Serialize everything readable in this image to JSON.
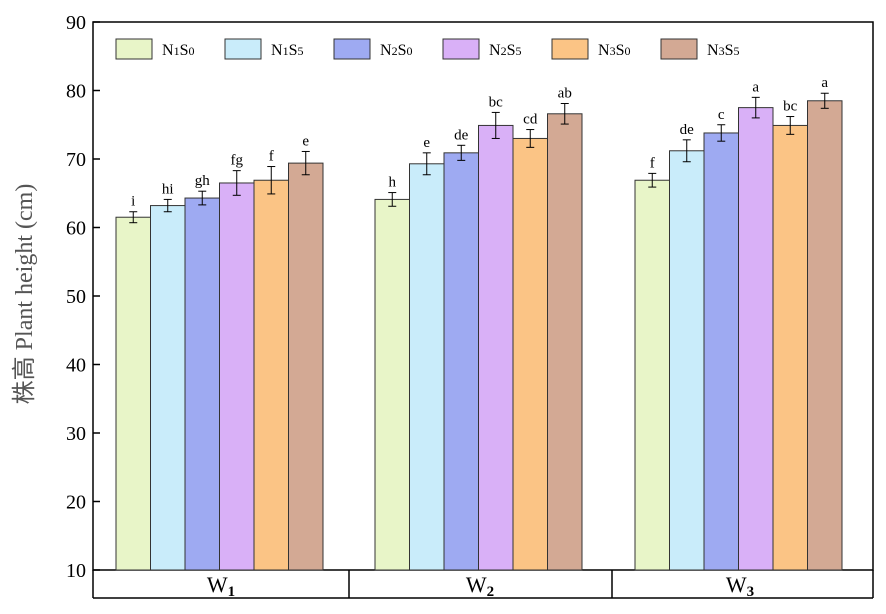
{
  "chart_data": {
    "type": "bar",
    "ylabel": "株高 Plant height (cm)",
    "ylim": [
      10,
      90
    ],
    "yticks": [
      10,
      20,
      30,
      40,
      50,
      60,
      70,
      80,
      90
    ],
    "categories": [
      {
        "main": "W",
        "sub": "1"
      },
      {
        "main": "W",
        "sub": "2"
      },
      {
        "main": "W",
        "sub": "3"
      }
    ],
    "legend_position": "top-left",
    "series": [
      {
        "name": "N1S0",
        "label_parts": [
          "N",
          "1",
          "S",
          "0"
        ],
        "color": "#e8f5c8",
        "values": [
          61.5,
          64.1,
          66.9
        ],
        "errors": [
          0.8,
          1.0,
          1.0
        ],
        "letters": [
          "i",
          "h",
          "f"
        ]
      },
      {
        "name": "N1S5",
        "label_parts": [
          "N",
          "1",
          "S",
          "5"
        ],
        "color": "#c9ecfa",
        "values": [
          63.2,
          69.3,
          71.2
        ],
        "errors": [
          0.9,
          1.6,
          1.6
        ],
        "letters": [
          "hi",
          "e",
          "de"
        ]
      },
      {
        "name": "N2S0",
        "label_parts": [
          "N",
          "2",
          "S",
          "0"
        ],
        "color": "#9eaaf2",
        "values": [
          64.3,
          70.9,
          73.8
        ],
        "errors": [
          1.0,
          1.1,
          1.2
        ],
        "letters": [
          "gh",
          "de",
          "c"
        ]
      },
      {
        "name": "N2S5",
        "label_parts": [
          "N",
          "2",
          "S",
          "5"
        ],
        "color": "#d9b0f7",
        "values": [
          66.5,
          74.9,
          77.5
        ],
        "errors": [
          1.8,
          1.9,
          1.5
        ],
        "letters": [
          "fg",
          "bc",
          "a"
        ]
      },
      {
        "name": "N3S0",
        "label_parts": [
          "N",
          "3",
          "S",
          "0"
        ],
        "color": "#fbc485",
        "values": [
          66.9,
          73.0,
          74.9
        ],
        "errors": [
          2.0,
          1.3,
          1.3
        ],
        "letters": [
          "f",
          "cd",
          "bc"
        ]
      },
      {
        "name": "N3S5",
        "label_parts": [
          "N",
          "3",
          "S",
          "5"
        ],
        "color": "#d3a994",
        "values": [
          69.4,
          76.6,
          78.5
        ],
        "errors": [
          1.7,
          1.5,
          1.1
        ],
        "letters": [
          "e",
          "ab",
          "a"
        ]
      }
    ]
  }
}
